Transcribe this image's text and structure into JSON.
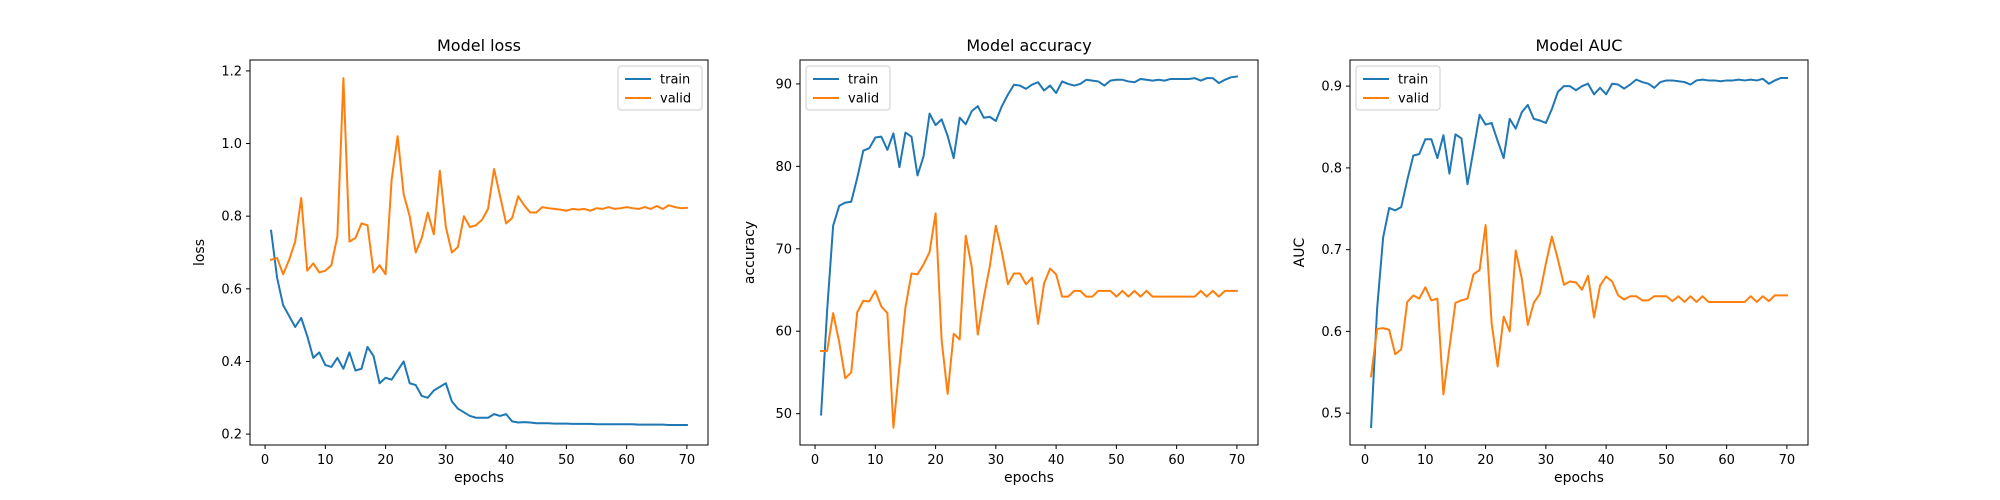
{
  "colors": {
    "train": "#1f77b4",
    "valid": "#ff7f0e"
  },
  "chart_data": [
    {
      "type": "line",
      "title": "Model loss",
      "xlabel": "epochs",
      "ylabel": "loss",
      "xlim": [
        -2.5,
        73.5
      ],
      "ylim": [
        0.17,
        1.23
      ],
      "xticks": [
        0,
        10,
        20,
        30,
        40,
        50,
        60,
        70
      ],
      "yticks": [
        0.2,
        0.4,
        0.6,
        0.8,
        1.0,
        1.2
      ],
      "ytick_labels": [
        "0.2",
        "0.4",
        "0.6",
        "0.8",
        "1.0",
        "1.2"
      ],
      "legend": "top-right",
      "x": [
        1,
        2,
        3,
        4,
        5,
        6,
        7,
        8,
        9,
        10,
        11,
        12,
        13,
        14,
        15,
        16,
        17,
        18,
        19,
        20,
        21,
        22,
        23,
        24,
        25,
        26,
        27,
        28,
        29,
        30,
        31,
        32,
        33,
        34,
        35,
        36,
        37,
        38,
        39,
        40,
        41,
        42,
        43,
        44,
        45,
        46,
        47,
        48,
        49,
        50,
        51,
        52,
        53,
        54,
        55,
        56,
        57,
        58,
        59,
        60,
        61,
        62,
        63,
        64,
        65,
        66,
        67,
        68,
        69,
        70
      ],
      "series": [
        {
          "name": "train",
          "values": [
            0.76,
            0.63,
            0.555,
            0.525,
            0.495,
            0.52,
            0.47,
            0.41,
            0.425,
            0.39,
            0.385,
            0.41,
            0.38,
            0.425,
            0.375,
            0.38,
            0.44,
            0.415,
            0.34,
            0.355,
            0.35,
            0.375,
            0.4,
            0.34,
            0.335,
            0.305,
            0.3,
            0.32,
            0.33,
            0.34,
            0.29,
            0.27,
            0.26,
            0.25,
            0.245,
            0.245,
            0.245,
            0.255,
            0.25,
            0.255,
            0.235,
            0.232,
            0.233,
            0.232,
            0.23,
            0.23,
            0.23,
            0.229,
            0.229,
            0.229,
            0.228,
            0.228,
            0.228,
            0.228,
            0.227,
            0.227,
            0.227,
            0.227,
            0.227,
            0.227,
            0.227,
            0.226,
            0.226,
            0.226,
            0.226,
            0.226,
            0.225,
            0.225,
            0.225,
            0.225
          ]
        },
        {
          "name": "valid",
          "values": [
            0.68,
            0.685,
            0.64,
            0.68,
            0.73,
            0.85,
            0.65,
            0.67,
            0.645,
            0.65,
            0.665,
            0.745,
            1.18,
            0.73,
            0.74,
            0.78,
            0.775,
            0.645,
            0.665,
            0.64,
            0.9,
            1.02,
            0.86,
            0.8,
            0.7,
            0.74,
            0.81,
            0.75,
            0.925,
            0.77,
            0.7,
            0.715,
            0.8,
            0.77,
            0.775,
            0.79,
            0.82,
            0.93,
            0.855,
            0.78,
            0.795,
            0.855,
            0.83,
            0.81,
            0.81,
            0.825,
            0.822,
            0.82,
            0.818,
            0.815,
            0.82,
            0.818,
            0.82,
            0.815,
            0.822,
            0.82,
            0.825,
            0.82,
            0.822,
            0.825,
            0.822,
            0.82,
            0.825,
            0.82,
            0.828,
            0.82,
            0.83,
            0.825,
            0.822,
            0.823
          ]
        }
      ]
    },
    {
      "type": "line",
      "title": "Model accuracy",
      "xlabel": "epochs",
      "ylabel": "accuracy",
      "xlim": [
        -2.5,
        73.5
      ],
      "ylim": [
        46.2,
        92.9
      ],
      "xticks": [
        0,
        10,
        20,
        30,
        40,
        50,
        60,
        70
      ],
      "yticks": [
        50,
        60,
        70,
        80,
        90
      ],
      "ytick_labels": [
        "50",
        "60",
        "70",
        "80",
        "90"
      ],
      "legend": "top-left",
      "x": [
        1,
        2,
        3,
        4,
        5,
        6,
        7,
        8,
        9,
        10,
        11,
        12,
        13,
        14,
        15,
        16,
        17,
        18,
        19,
        20,
        21,
        22,
        23,
        24,
        25,
        26,
        27,
        28,
        29,
        30,
        31,
        32,
        33,
        34,
        35,
        36,
        37,
        38,
        39,
        40,
        41,
        42,
        43,
        44,
        45,
        46,
        47,
        48,
        49,
        50,
        51,
        52,
        53,
        54,
        55,
        56,
        57,
        58,
        59,
        60,
        61,
        62,
        63,
        64,
        65,
        66,
        67,
        68,
        69,
        70
      ],
      "series": [
        {
          "name": "train",
          "values": [
            49.9,
            62.5,
            72.8,
            75.2,
            75.6,
            75.7,
            78.6,
            81.9,
            82.2,
            83.5,
            83.6,
            82.0,
            84.0,
            79.9,
            84.1,
            83.6,
            78.9,
            81.2,
            86.4,
            85.0,
            85.7,
            83.7,
            81.0,
            85.9,
            85.1,
            86.7,
            87.3,
            85.9,
            86.0,
            85.5,
            87.3,
            88.7,
            89.9,
            89.8,
            89.4,
            89.9,
            90.2,
            89.2,
            89.8,
            88.9,
            90.3,
            90.0,
            89.8,
            90.0,
            90.5,
            90.4,
            90.3,
            89.8,
            90.4,
            90.5,
            90.5,
            90.3,
            90.2,
            90.6,
            90.5,
            90.4,
            90.5,
            90.4,
            90.6,
            90.6,
            90.6,
            90.6,
            90.7,
            90.4,
            90.7,
            90.7,
            90.1,
            90.5,
            90.8,
            90.9
          ]
        },
        {
          "name": "valid",
          "values": [
            57.6,
            57.6,
            62.2,
            58.7,
            54.3,
            55.0,
            62.3,
            63.7,
            63.6,
            64.9,
            63.0,
            62.2,
            48.3,
            55.8,
            62.9,
            67.0,
            66.9,
            68.1,
            69.6,
            74.3,
            58.9,
            52.4,
            59.7,
            59.0,
            71.6,
            67.8,
            59.6,
            64.1,
            67.9,
            72.8,
            69.6,
            65.7,
            67.0,
            67.0,
            65.7,
            66.5,
            60.9,
            65.8,
            67.6,
            66.9,
            64.2,
            64.2,
            64.9,
            64.9,
            64.2,
            64.2,
            64.9,
            64.9,
            64.9,
            64.2,
            64.9,
            64.2,
            64.9,
            64.2,
            64.9,
            64.2,
            64.2,
            64.2,
            64.2,
            64.2,
            64.2,
            64.2,
            64.2,
            64.9,
            64.2,
            64.9,
            64.2,
            64.9,
            64.9,
            64.9
          ]
        }
      ]
    },
    {
      "type": "line",
      "title": "Model AUC",
      "xlabel": "epochs",
      "ylabel": "AUC",
      "xlim": [
        -2.5,
        73.5
      ],
      "ylim": [
        0.461,
        0.932
      ],
      "xticks": [
        0,
        10,
        20,
        30,
        40,
        50,
        60,
        70
      ],
      "yticks": [
        0.5,
        0.6,
        0.7,
        0.8,
        0.9
      ],
      "ytick_labels": [
        "0.5",
        "0.6",
        "0.7",
        "0.8",
        "0.9"
      ],
      "legend": "top-left",
      "x": [
        1,
        2,
        3,
        4,
        5,
        6,
        7,
        8,
        9,
        10,
        11,
        12,
        13,
        14,
        15,
        16,
        17,
        18,
        19,
        20,
        21,
        22,
        23,
        24,
        25,
        26,
        27,
        28,
        29,
        30,
        31,
        32,
        33,
        34,
        35,
        36,
        37,
        38,
        39,
        40,
        41,
        42,
        43,
        44,
        45,
        46,
        47,
        48,
        49,
        50,
        51,
        52,
        53,
        54,
        55,
        56,
        57,
        58,
        59,
        60,
        61,
        62,
        63,
        64,
        65,
        66,
        67,
        68,
        69,
        70
      ],
      "series": [
        {
          "name": "train",
          "values": [
            0.483,
            0.628,
            0.715,
            0.751,
            0.748,
            0.752,
            0.785,
            0.815,
            0.817,
            0.835,
            0.835,
            0.812,
            0.84,
            0.793,
            0.841,
            0.836,
            0.78,
            0.822,
            0.865,
            0.853,
            0.855,
            0.833,
            0.812,
            0.86,
            0.848,
            0.868,
            0.877,
            0.86,
            0.858,
            0.855,
            0.872,
            0.893,
            0.9,
            0.9,
            0.895,
            0.9,
            0.903,
            0.89,
            0.898,
            0.89,
            0.903,
            0.902,
            0.897,
            0.902,
            0.908,
            0.905,
            0.903,
            0.898,
            0.905,
            0.907,
            0.907,
            0.906,
            0.905,
            0.902,
            0.907,
            0.908,
            0.907,
            0.907,
            0.906,
            0.907,
            0.907,
            0.908,
            0.907,
            0.908,
            0.907,
            0.909,
            0.903,
            0.907,
            0.91,
            0.91
          ]
        },
        {
          "name": "valid",
          "values": [
            0.545,
            0.603,
            0.604,
            0.602,
            0.572,
            0.578,
            0.636,
            0.644,
            0.64,
            0.654,
            0.638,
            0.64,
            0.523,
            0.58,
            0.635,
            0.638,
            0.64,
            0.67,
            0.675,
            0.73,
            0.61,
            0.557,
            0.618,
            0.6,
            0.699,
            0.665,
            0.608,
            0.635,
            0.646,
            0.683,
            0.716,
            0.688,
            0.657,
            0.661,
            0.66,
            0.651,
            0.668,
            0.617,
            0.656,
            0.667,
            0.661,
            0.644,
            0.639,
            0.643,
            0.643,
            0.638,
            0.638,
            0.643,
            0.643,
            0.643,
            0.637,
            0.643,
            0.636,
            0.643,
            0.636,
            0.643,
            0.636,
            0.636,
            0.636,
            0.636,
            0.636,
            0.636,
            0.636,
            0.643,
            0.636,
            0.643,
            0.637,
            0.644,
            0.644,
            0.644
          ]
        }
      ]
    }
  ]
}
